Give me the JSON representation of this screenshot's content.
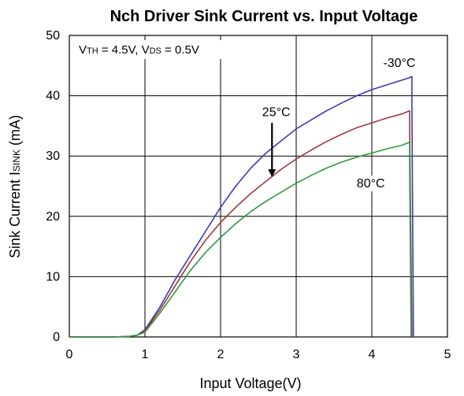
{
  "chart_data": {
    "type": "line",
    "title": "Nch Driver Sink Current  vs. Input Voltage",
    "xlabel": "Input Voltage(V)",
    "ylabel": "Sink Current ISINK (mA)",
    "xlim": [
      0,
      5
    ],
    "ylim": [
      0,
      50
    ],
    "x_ticks": [
      0,
      1,
      2,
      3,
      4,
      5
    ],
    "y_ticks": [
      0,
      10,
      20,
      30,
      40,
      50
    ],
    "grid": true,
    "condition_text": "VTH = 4.5V, VDS = 0.5V",
    "series": [
      {
        "name": "-30°C",
        "color": "#3a3ab8",
        "points": [
          [
            0,
            0
          ],
          [
            0.6,
            0
          ],
          [
            0.8,
            0.1
          ],
          [
            0.9,
            0.3
          ],
          [
            1.0,
            1.2
          ],
          [
            1.2,
            5
          ],
          [
            1.4,
            9.5
          ],
          [
            1.6,
            13.5
          ],
          [
            1.8,
            17.5
          ],
          [
            2.0,
            21.5
          ],
          [
            2.2,
            25
          ],
          [
            2.4,
            28
          ],
          [
            2.6,
            30.5
          ],
          [
            2.8,
            32.5
          ],
          [
            3.0,
            34.5
          ],
          [
            3.2,
            36
          ],
          [
            3.4,
            37.5
          ],
          [
            3.6,
            38.8
          ],
          [
            3.8,
            40
          ],
          [
            4.0,
            41
          ],
          [
            4.2,
            41.8
          ],
          [
            4.4,
            42.6
          ],
          [
            4.5,
            43
          ],
          [
            4.53,
            43.2
          ],
          [
            4.53,
            38
          ],
          [
            4.55,
            0
          ]
        ]
      },
      {
        "name": "25°C",
        "color": "#a33838",
        "points": [
          [
            0,
            0
          ],
          [
            0.6,
            0
          ],
          [
            0.8,
            0.1
          ],
          [
            0.9,
            0.3
          ],
          [
            1.0,
            1.0
          ],
          [
            1.2,
            4.5
          ],
          [
            1.4,
            8.5
          ],
          [
            1.6,
            12.5
          ],
          [
            1.8,
            16
          ],
          [
            2.0,
            19
          ],
          [
            2.2,
            21.5
          ],
          [
            2.4,
            23.8
          ],
          [
            2.6,
            25.8
          ],
          [
            2.8,
            27.8
          ],
          [
            3.0,
            29.5
          ],
          [
            3.2,
            31
          ],
          [
            3.4,
            32.4
          ],
          [
            3.6,
            33.6
          ],
          [
            3.8,
            34.7
          ],
          [
            4.0,
            35.5
          ],
          [
            4.2,
            36.3
          ],
          [
            4.4,
            37
          ],
          [
            4.5,
            37.5
          ],
          [
            4.5,
            34
          ],
          [
            4.53,
            0
          ]
        ]
      },
      {
        "name": "80°C",
        "color": "#2f9a3e",
        "points": [
          [
            0,
            0
          ],
          [
            0.6,
            0
          ],
          [
            0.8,
            0.1
          ],
          [
            0.9,
            0.3
          ],
          [
            1.0,
            0.8
          ],
          [
            1.2,
            4
          ],
          [
            1.4,
            7.5
          ],
          [
            1.6,
            11
          ],
          [
            1.8,
            14
          ],
          [
            2.0,
            16.5
          ],
          [
            2.2,
            18.8
          ],
          [
            2.4,
            20.8
          ],
          [
            2.6,
            22.5
          ],
          [
            2.8,
            24
          ],
          [
            3.0,
            25.5
          ],
          [
            3.2,
            26.8
          ],
          [
            3.4,
            28
          ],
          [
            3.6,
            29
          ],
          [
            3.8,
            29.8
          ],
          [
            4.0,
            30.5
          ],
          [
            4.2,
            31.2
          ],
          [
            4.4,
            31.8
          ],
          [
            4.5,
            32.3
          ],
          [
            4.5,
            28
          ],
          [
            4.52,
            0
          ]
        ]
      }
    ],
    "annotations": [
      {
        "text": "-30°C",
        "x": 4.15,
        "y": 44.8
      },
      {
        "text": "25°C",
        "x": 2.55,
        "y": 36.6
      },
      {
        "text": "80°C",
        "x": 3.8,
        "y": 24.8
      }
    ],
    "arrow": {
      "from": [
        2.68,
        35.5
      ],
      "to": [
        2.68,
        26.5
      ]
    }
  }
}
